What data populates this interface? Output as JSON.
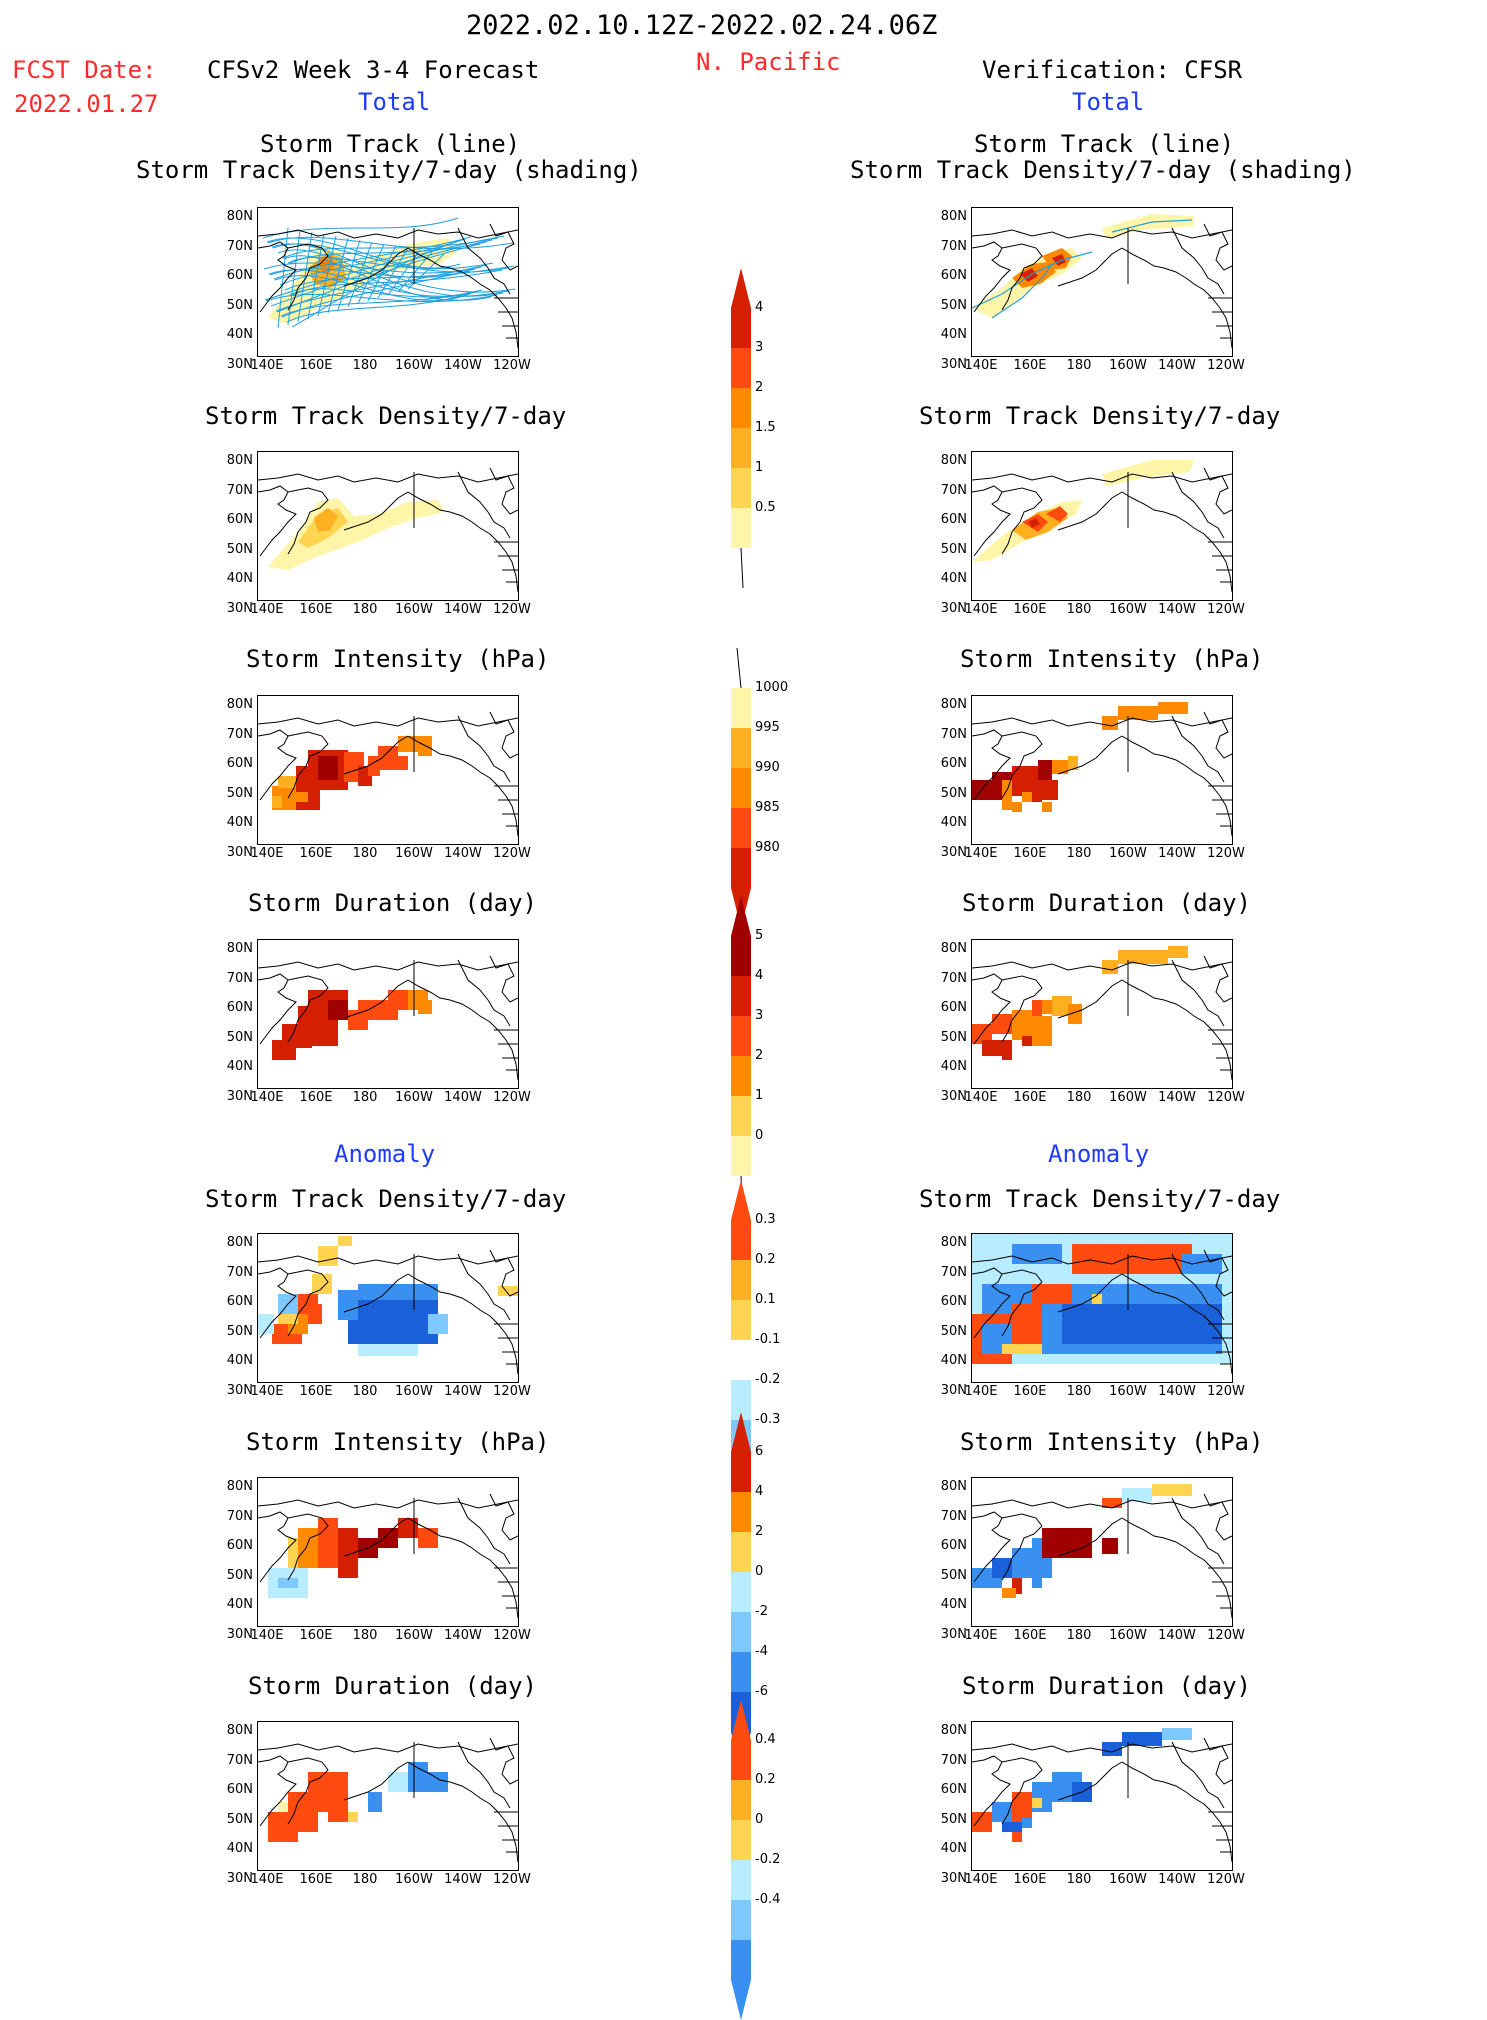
{
  "header": {
    "date_range": "2022.02.10.12Z-2022.02.24.06Z",
    "fcst_label": "FCST Date:",
    "fcst_date": "2022.01.27",
    "left_title": "CFSv2 Week 3-4 Forecast",
    "region": "N. Pacific",
    "right_title": "Verification: CFSR"
  },
  "sections": {
    "total": "Total",
    "anomaly": "Anomaly"
  },
  "panel_titles": {
    "track_line": "Storm Track (line)",
    "track_shade": "Storm Track Density/7-day (shading)",
    "density": "Storm Track Density/7-day",
    "intensity": "Storm Intensity (hPa)",
    "duration": "Storm Duration (day)"
  },
  "axes": {
    "lat": [
      "80N",
      "70N",
      "60N",
      "50N",
      "40N",
      "30N"
    ],
    "lon": [
      "140E",
      "160E",
      "180",
      "160W",
      "140W",
      "120W"
    ]
  },
  "colorbars": {
    "density_total": [
      "4",
      "3",
      "2",
      "1.5",
      "1",
      "0.5"
    ],
    "intensity_total": [
      "1000",
      "995",
      "990",
      "985",
      "980"
    ],
    "duration_total": [
      "5",
      "4",
      "3",
      "2",
      "1",
      "0"
    ],
    "density_anom": [
      "0.3",
      "0.2",
      "0.1",
      "-0.1",
      "-0.2",
      "-0.3"
    ],
    "intensity_anom": [
      "6",
      "4",
      "2",
      "0",
      "-2",
      "-4",
      "-6"
    ],
    "duration_anom": [
      "0.4",
      "0.2",
      "0",
      "-0.2",
      "-0.4"
    ]
  },
  "colors": {
    "yellow_light": "#fff5a8",
    "yellow": "#ffd450",
    "orange_light": "#ffb020",
    "orange": "#ff8a00",
    "red_orange": "#ff4a10",
    "red": "#d42000",
    "dark_red": "#a00000",
    "blue_light": "#b8ecff",
    "blue_mid": "#7cc8ff",
    "blue": "#3a90f0",
    "blue_dark": "#1a60d8",
    "track_line": "#1ea0e0"
  }
}
